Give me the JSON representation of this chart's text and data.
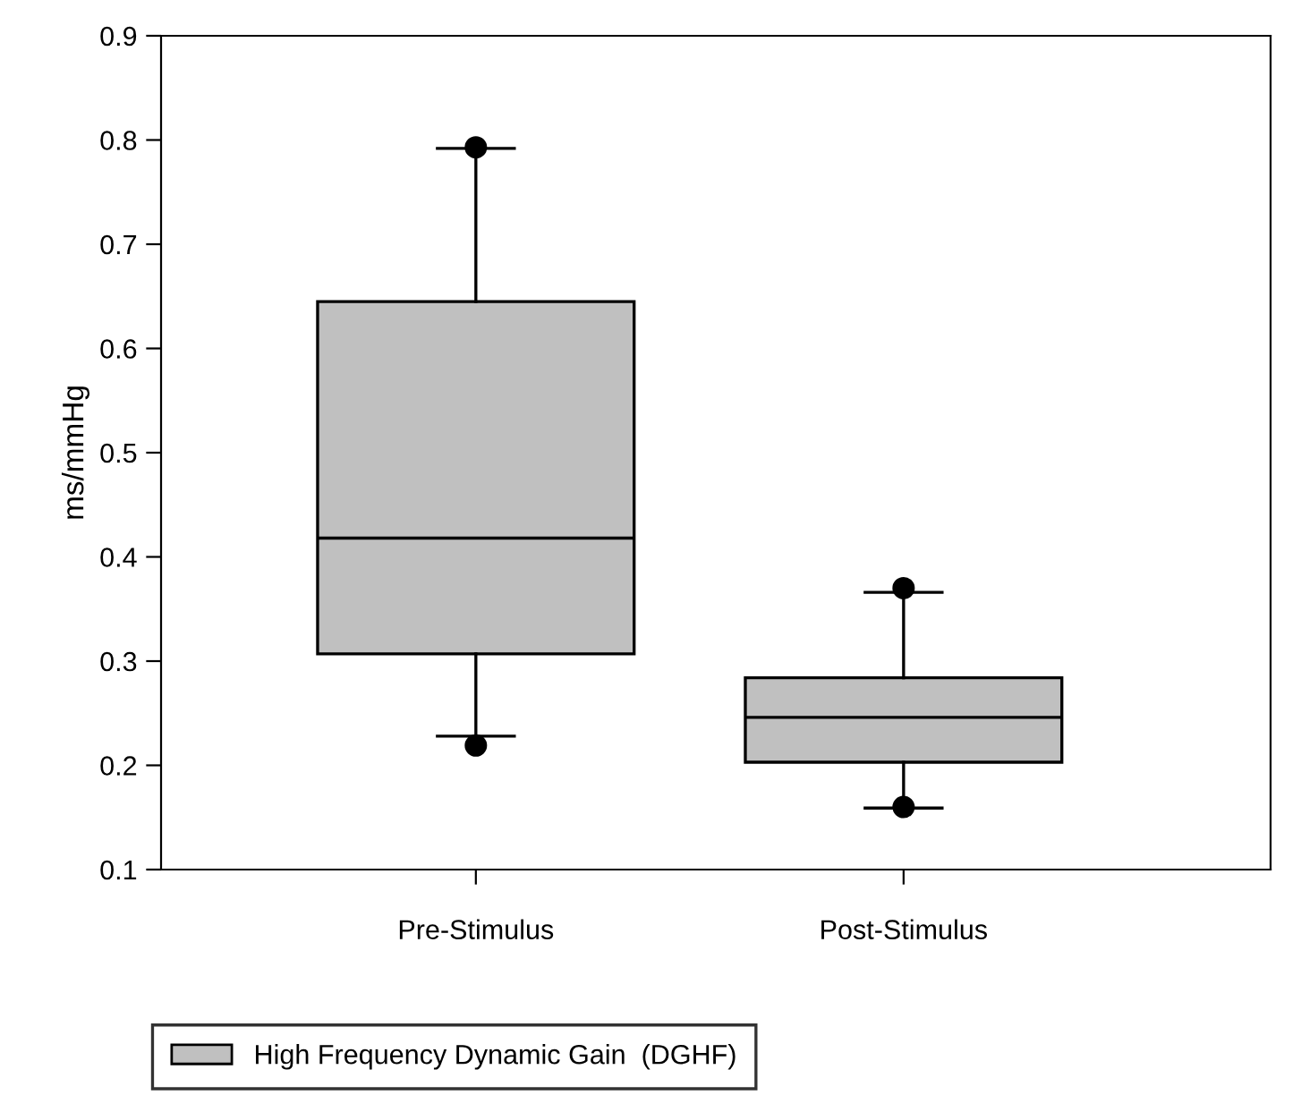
{
  "chart_data": {
    "type": "box",
    "ylabel": "ms/mmHg",
    "categories": [
      "Pre-Stimulus",
      "Post-Stimulus"
    ],
    "series": [
      {
        "name": "High Frequency Dynamic Gain  (DGHF)",
        "color": "#c0c0c0",
        "boxes": [
          {
            "low": 0.228,
            "q1": 0.307,
            "median": 0.418,
            "q3": 0.645,
            "high": 0.792,
            "outliers": [
              0.793,
              0.219
            ]
          },
          {
            "low": 0.159,
            "q1": 0.203,
            "median": 0.246,
            "q3": 0.284,
            "high": 0.366,
            "outliers": [
              0.37,
              0.16
            ]
          }
        ]
      }
    ],
    "ylim": [
      0.1,
      0.9
    ],
    "yticks": [
      0.1,
      0.2,
      0.3,
      0.4,
      0.5,
      0.6,
      0.7,
      0.8,
      0.9
    ],
    "grid": false,
    "legend": "bottom left"
  }
}
